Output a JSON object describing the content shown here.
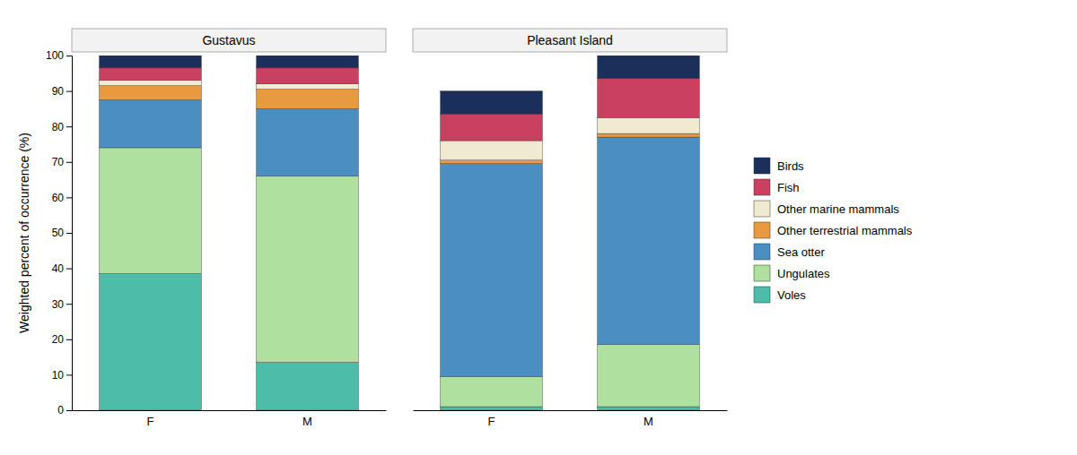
{
  "chart_data": [
    {
      "type": "bar",
      "stacked": true,
      "title": "Gustavus",
      "ylabel": "Weighted percent of occurrence (%)",
      "categories": [
        "F",
        "M"
      ],
      "series": [
        {
          "name": "Voles",
          "color": "#4dbdaa",
          "values": [
            38.5,
            13.5
          ]
        },
        {
          "name": "Ungulates",
          "color": "#b0e0a0",
          "values": [
            35.5,
            52.5
          ]
        },
        {
          "name": "Sea otter",
          "color": "#4a8ec2",
          "values": [
            13.5,
            19.0
          ]
        },
        {
          "name": "Other terrestrial mammals",
          "color": "#e89a40",
          "values": [
            4.0,
            5.5
          ]
        },
        {
          "name": "Other marine mammals",
          "color": "#f0ead0",
          "values": [
            1.5,
            1.5
          ]
        },
        {
          "name": "Fish",
          "color": "#c94060",
          "values": [
            3.5,
            4.5
          ]
        },
        {
          "name": "Birds",
          "color": "#1a2f5a",
          "values": [
            3.5,
            3.5
          ]
        }
      ],
      "ylim": [
        0,
        100
      ],
      "yticks": [
        0,
        10,
        20,
        30,
        40,
        50,
        60,
        70,
        80,
        90,
        100
      ],
      "grid": false,
      "legend": "right"
    },
    {
      "type": "bar",
      "stacked": true,
      "title": "Pleasant Island",
      "categories": [
        "F",
        "M"
      ],
      "series": [
        {
          "name": "Voles",
          "color": "#4dbdaa",
          "values": [
            1.0,
            1.0
          ]
        },
        {
          "name": "Ungulates",
          "color": "#b0e0a0",
          "values": [
            8.5,
            17.5
          ]
        },
        {
          "name": "Sea otter",
          "color": "#4a8ec2",
          "values": [
            60.0,
            58.5
          ]
        },
        {
          "name": "Other terrestrial mammals",
          "color": "#e89a40",
          "values": [
            1.0,
            1.0
          ]
        },
        {
          "name": "Other marine mammals",
          "color": "#f0ead0",
          "values": [
            5.5,
            4.5
          ]
        },
        {
          "name": "Fish",
          "color": "#c94060",
          "values": [
            7.5,
            11.0
          ]
        },
        {
          "name": "Birds",
          "color": "#1a2f5a",
          "values": [
            6.5,
            6.5
          ]
        }
      ],
      "ylim": [
        0,
        100
      ],
      "yticks": [
        0,
        10,
        20,
        30,
        40,
        50,
        60,
        70,
        80,
        90,
        100
      ],
      "grid": false,
      "tick_labels": "x"
    }
  ]
}
